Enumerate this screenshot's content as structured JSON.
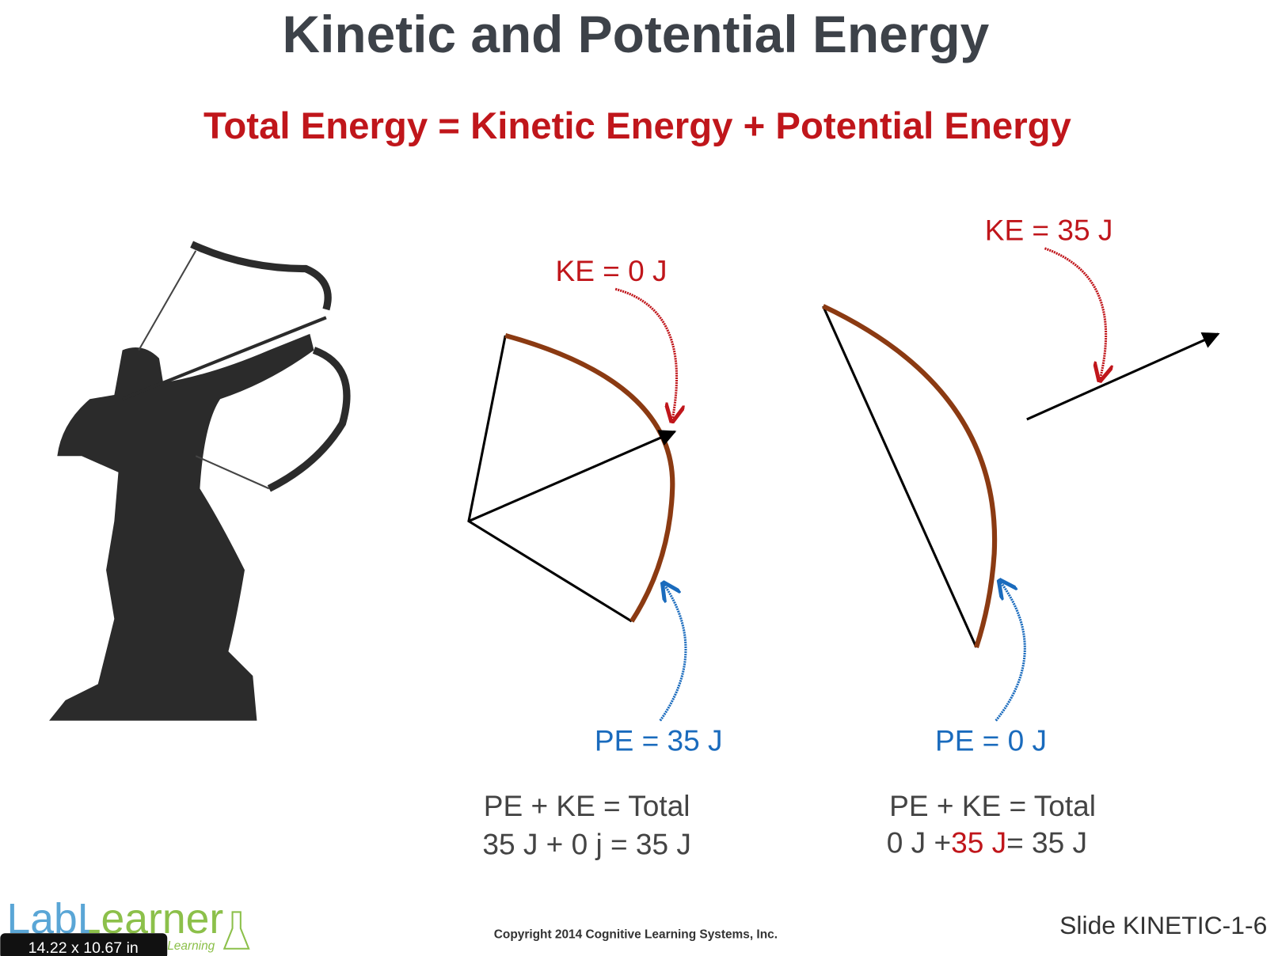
{
  "header": {
    "title": "Kinetic and Potential Energy",
    "subtitle": "Total Energy = Kinetic Energy + Potential Energy"
  },
  "left_bow": {
    "ke_label": "KE = 0 J",
    "pe_label": "PE = 35 J",
    "equation_line1": "PE + KE = Total",
    "equation_line2": "35 J + 0 j = 35 J"
  },
  "right_bow": {
    "ke_label": "KE = 35 J",
    "pe_label": "PE = 0 J",
    "equation_line1": "PE + KE = Total",
    "equation_line2": [
      "0 J +",
      "35 J",
      "= 35 J"
    ]
  },
  "footer": {
    "logo": "LabLearner",
    "logo_tagline": "Learning",
    "copyright": "Copyright 2014 Cognitive Learning Systems, Inc.",
    "slide_id": "Slide KINETIC-1-6",
    "page_size": "14.22 x 10.67 in"
  }
}
